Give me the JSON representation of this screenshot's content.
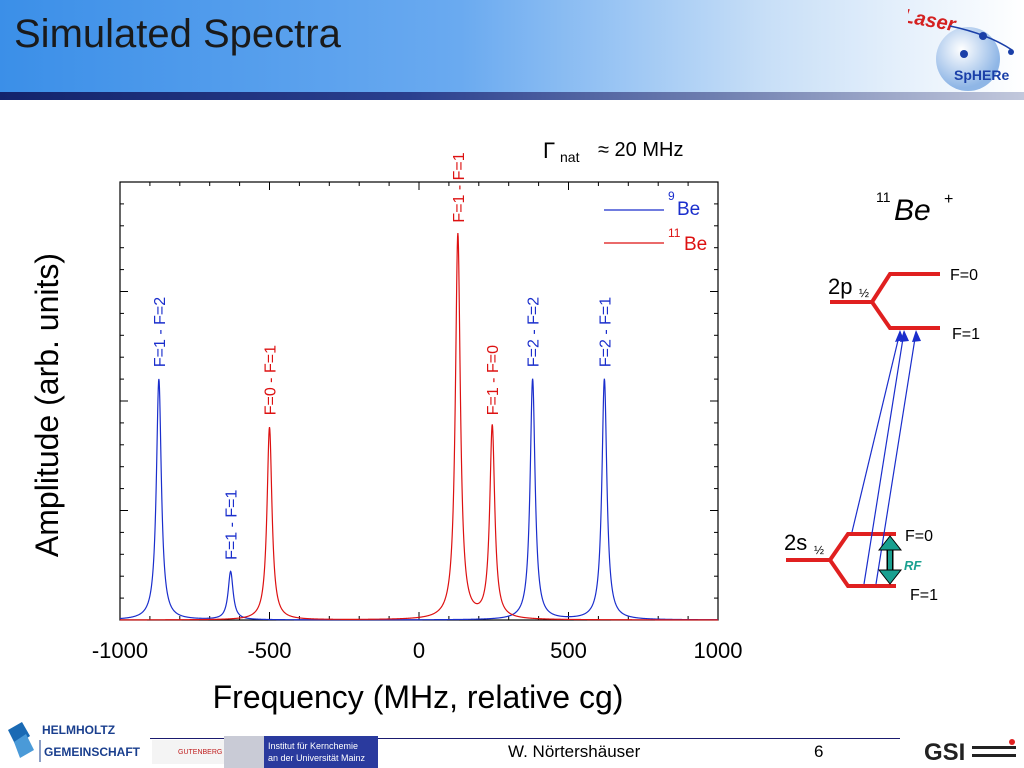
{
  "slide": {
    "title": "Simulated Spectra",
    "footer_author": "W. Nörtershäuser",
    "page_number": "6",
    "logos": {
      "laser_sphere": "LaserSpHERe",
      "helmholtz_line1": "HELMHOLTZ",
      "helmholtz_line2": "GEMEINSCHAFT",
      "gutenberg": "GUTENBERG",
      "institute_line1": "Institut für Kernchemie",
      "institute_line2": "an der Universität Mainz",
      "gsi": "GSI"
    }
  },
  "chart_data": {
    "type": "line",
    "xlabel": "Frequency (MHz, relative cg)",
    "ylabel": "Amplitude (arb. units)",
    "xlim": [
      -1000,
      1000
    ],
    "ylim": [
      0,
      1.0
    ],
    "xticks": [
      "-1000",
      "-500",
      "0",
      "500",
      "1000"
    ],
    "annotation": {
      "symbol": "Γ",
      "subscript": "nat",
      "text": "≈ 20 MHz"
    },
    "legend_position": "top-right",
    "series": [
      {
        "name": "9Be",
        "name_sup": "9",
        "name_base": "Be",
        "color": "#1a2ecc",
        "peaks": [
          {
            "center": -870,
            "height": 0.55,
            "label": "F=1 - F=2"
          },
          {
            "center": -630,
            "height": 0.11,
            "label": "F=1 - F=1"
          },
          {
            "center": 380,
            "height": 0.55,
            "label": "F=2 - F=2"
          },
          {
            "center": 620,
            "height": 0.55,
            "label": "F=2 - F=1"
          }
        ]
      },
      {
        "name": "11Be",
        "name_sup": "11",
        "name_base": "Be",
        "color": "#dd1111",
        "peaks": [
          {
            "center": -500,
            "height": 0.44,
            "label": "F=0 - F=1"
          },
          {
            "center": 130,
            "height": 0.88,
            "label": "F=1 - F=1"
          },
          {
            "center": 245,
            "height": 0.44,
            "label": "F=1 - F=0"
          }
        ]
      }
    ]
  },
  "level_diagram": {
    "ion_sup": "11",
    "ion_base": "Be",
    "ion_charge": "+",
    "upper": {
      "label": "2p",
      "j": "½",
      "f_top": "F=0",
      "f_bottom": "F=1"
    },
    "lower": {
      "label": "2s",
      "j": "½",
      "f_top": "F=0",
      "f_bottom": "F=1"
    },
    "rf_label": "RF"
  }
}
